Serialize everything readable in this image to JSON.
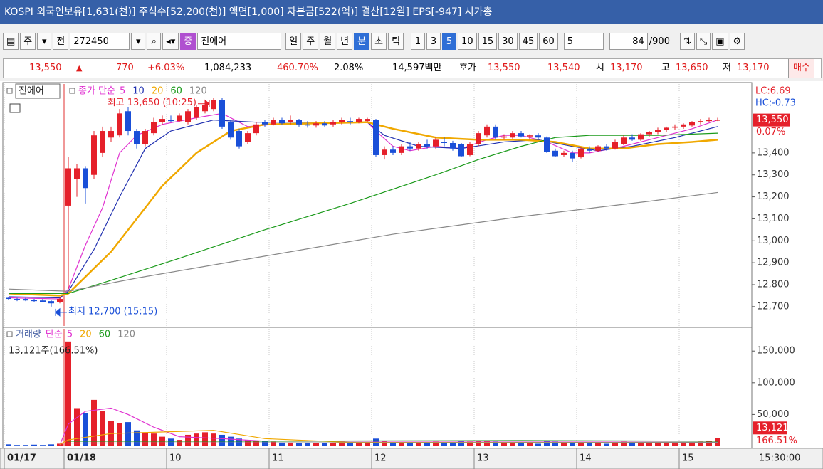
{
  "header": {
    "title": "KOSPI 외국인보유[1,631(천)] 주식수[52,200(천)] 액면[1,000] 자본금[522(억)] 결산[12월] EPS[-947] 시가총"
  },
  "toolbar": {
    "market": "주",
    "prefix": "전",
    "code": "272450",
    "badge": "증",
    "name": "진에어",
    "periods": [
      "일",
      "주",
      "월",
      "년",
      "분",
      "초",
      "틱"
    ],
    "selected_period": "분",
    "intervals": [
      1,
      3,
      5,
      10,
      15,
      30,
      45,
      60
    ],
    "selected_interval": 5,
    "count_select": 5,
    "count": 84,
    "max": "/900"
  },
  "quote": {
    "price": "13,550",
    "change": "770",
    "change_pct": "+6.03%",
    "volume": "1,084,233",
    "volume_ratio": "460.70%",
    "turnover": "2.08%",
    "amount": "14,597백만",
    "bid_label": "호가",
    "ask": "13,550",
    "bid": "13,540",
    "open_label": "시",
    "open": "13,170",
    "high_label": "고",
    "high": "13,650",
    "low_label": "저",
    "low": "13,170",
    "buy": "매수"
  },
  "chart_data": [
    {
      "type": "candlestick",
      "name": "진에어",
      "legend_title": "종가 단순",
      "up_color": "#e5202a",
      "down_color": "#1a4fd8",
      "candles": [
        [
          12740,
          12745,
          12730,
          12735
        ],
        [
          12735,
          12740,
          12725,
          12730
        ],
        [
          12735,
          12740,
          12725,
          12728
        ],
        [
          12730,
          12735,
          12720,
          12725
        ],
        [
          12728,
          12735,
          12720,
          12722
        ],
        [
          12725,
          12730,
          12700,
          12715
        ],
        [
          12720,
          12740,
          12715,
          12735
        ],
        [
          13160,
          13380,
          12780,
          13330
        ],
        [
          13280,
          13350,
          13200,
          13330
        ],
        [
          13330,
          13340,
          13170,
          13240
        ],
        [
          13300,
          13500,
          13280,
          13480
        ],
        [
          13400,
          13520,
          13380,
          13500
        ],
        [
          13470,
          13520,
          13450,
          13500
        ],
        [
          13480,
          13600,
          13470,
          13580
        ],
        [
          13590,
          13610,
          13480,
          13500
        ],
        [
          13500,
          13510,
          13420,
          13440
        ],
        [
          13440,
          13510,
          13430,
          13500
        ],
        [
          13490,
          13560,
          13480,
          13540
        ],
        [
          13540,
          13570,
          13530,
          13555
        ],
        [
          13550,
          13570,
          13540,
          13545
        ],
        [
          13545,
          13580,
          13540,
          13570
        ],
        [
          13540,
          13600,
          13530,
          13590
        ],
        [
          13560,
          13620,
          13550,
          13610
        ],
        [
          13590,
          13640,
          13580,
          13620
        ],
        [
          13600,
          13650,
          13590,
          13640
        ],
        [
          13640,
          13650,
          13510,
          13520
        ],
        [
          13540,
          13550,
          13460,
          13470
        ],
        [
          13500,
          13510,
          13420,
          13430
        ],
        [
          13450,
          13500,
          13440,
          13490
        ],
        [
          13490,
          13540,
          13480,
          13530
        ],
        [
          13540,
          13550,
          13520,
          13530
        ],
        [
          13530,
          13560,
          13525,
          13550
        ],
        [
          13550,
          13560,
          13530,
          13535
        ],
        [
          13540,
          13570,
          13530,
          13550
        ],
        [
          13550,
          13555,
          13520,
          13530
        ],
        [
          13530,
          13545,
          13515,
          13525
        ],
        [
          13525,
          13545,
          13515,
          13535
        ],
        [
          13535,
          13545,
          13520,
          13525
        ],
        [
          13530,
          13550,
          13520,
          13540
        ],
        [
          13540,
          13560,
          13530,
          13550
        ],
        [
          13545,
          13560,
          13530,
          13540
        ],
        [
          13540,
          13560,
          13535,
          13555
        ],
        [
          13545,
          13560,
          13540,
          13555
        ],
        [
          13550,
          13555,
          13380,
          13390
        ],
        [
          13390,
          13430,
          13370,
          13415
        ],
        [
          13415,
          13430,
          13390,
          13400
        ],
        [
          13400,
          13440,
          13390,
          13430
        ],
        [
          13430,
          13450,
          13410,
          13420
        ],
        [
          13420,
          13450,
          13410,
          13440
        ],
        [
          13440,
          13460,
          13420,
          13430
        ],
        [
          13430,
          13470,
          13420,
          13460
        ],
        [
          13450,
          13470,
          13430,
          13445
        ],
        [
          13445,
          13455,
          13410,
          13420
        ],
        [
          13440,
          13445,
          13380,
          13385
        ],
        [
          13390,
          13450,
          13385,
          13440
        ],
        [
          13440,
          13500,
          13430,
          13490
        ],
        [
          13480,
          13530,
          13470,
          13520
        ],
        [
          13520,
          13530,
          13460,
          13470
        ],
        [
          13470,
          13485,
          13460,
          13475
        ],
        [
          13470,
          13500,
          13465,
          13490
        ],
        [
          13490,
          13500,
          13470,
          13475
        ],
        [
          13475,
          13485,
          13460,
          13480
        ],
        [
          13480,
          13490,
          13460,
          13470
        ],
        [
          13470,
          13475,
          13400,
          13405
        ],
        [
          13410,
          13420,
          13380,
          13385
        ],
        [
          13390,
          13410,
          13380,
          13400
        ],
        [
          13400,
          13410,
          13360,
          13375
        ],
        [
          13380,
          13425,
          13375,
          13420
        ],
        [
          13420,
          13430,
          13400,
          13410
        ],
        [
          13410,
          13435,
          13405,
          13430
        ],
        [
          13430,
          13440,
          13410,
          13420
        ],
        [
          13420,
          13460,
          13415,
          13450
        ],
        [
          13440,
          13480,
          13435,
          13470
        ],
        [
          13470,
          13485,
          13455,
          13460
        ],
        [
          13460,
          13490,
          13455,
          13485
        ],
        [
          13485,
          13500,
          13475,
          13495
        ],
        [
          13495,
          13515,
          13485,
          13505
        ],
        [
          13505,
          13520,
          13495,
          13515
        ],
        [
          13515,
          13530,
          13505,
          13520
        ],
        [
          13520,
          13535,
          13510,
          13530
        ],
        [
          13525,
          13545,
          13520,
          13540
        ],
        [
          13540,
          13555,
          13530,
          13545
        ],
        [
          13545,
          13560,
          13540,
          13550
        ],
        [
          13550,
          13560,
          13545,
          13550
        ]
      ],
      "series": [
        {
          "name": "5",
          "color": "#e030d0",
          "x": [
            0,
            6,
            7,
            9,
            11,
            13,
            15,
            18,
            22,
            25,
            28,
            31,
            42,
            43,
            45,
            47,
            50,
            53,
            56,
            58,
            60,
            63,
            66,
            68,
            72,
            76,
            80,
            83
          ],
          "values": [
            12740,
            12735,
            12780,
            12980,
            13150,
            13400,
            13480,
            13530,
            13560,
            13580,
            13520,
            13530,
            13540,
            13500,
            13430,
            13410,
            13430,
            13420,
            13460,
            13480,
            13480,
            13450,
            13400,
            13400,
            13430,
            13470,
            13510,
            13550
          ]
        },
        {
          "name": "10",
          "color": "#2030b0",
          "x": [
            0,
            6,
            7,
            10,
            13,
            16,
            19,
            24,
            29,
            42,
            44,
            48,
            53,
            58,
            62,
            66,
            69,
            73,
            78,
            83
          ],
          "values": [
            12745,
            12740,
            12770,
            12960,
            13200,
            13420,
            13500,
            13550,
            13540,
            13540,
            13480,
            13430,
            13420,
            13450,
            13460,
            13430,
            13410,
            13430,
            13470,
            13520
          ]
        },
        {
          "name": "20",
          "color": "#f0a800",
          "x": [
            0,
            6,
            7,
            12,
            18,
            22,
            26,
            30,
            42,
            45,
            50,
            55,
            60,
            64,
            68,
            72,
            76,
            80,
            83
          ],
          "values": [
            12760,
            12750,
            12760,
            12950,
            13250,
            13400,
            13500,
            13530,
            13540,
            13510,
            13470,
            13460,
            13460,
            13450,
            13420,
            13420,
            13440,
            13450,
            13460
          ]
        },
        {
          "name": "60",
          "color": "#1a9a1a",
          "x": [
            0,
            7,
            12,
            20,
            30,
            40,
            50,
            55,
            60,
            64,
            68,
            76,
            83
          ],
          "values": [
            12760,
            12760,
            12820,
            12920,
            13050,
            13170,
            13300,
            13370,
            13430,
            13470,
            13480,
            13480,
            13490
          ]
        },
        {
          "name": "120",
          "color": "#888888",
          "x": [
            0,
            7,
            15,
            30,
            45,
            60,
            75,
            83
          ],
          "values": [
            12780,
            12770,
            12830,
            12930,
            13030,
            13110,
            13180,
            13220
          ]
        }
      ],
      "xlim": [
        0,
        87.5
      ],
      "xticks": [
        {
          "value": 0,
          "label": "01/17"
        },
        {
          "value": 7,
          "label": "01/18"
        },
        {
          "value": 19,
          "label": "10"
        },
        {
          "value": 31,
          "label": "11"
        },
        {
          "value": 43,
          "label": "12"
        },
        {
          "value": 55,
          "label": "13"
        },
        {
          "value": 67,
          "label": "14"
        },
        {
          "value": 79,
          "label": "15"
        }
      ],
      "time_label": "15:30:00",
      "ylim": [
        12612,
        13714
      ],
      "yticks": [
        {
          "value": 12700,
          "label": "12,700"
        },
        {
          "value": 12800,
          "label": "12,800"
        },
        {
          "value": 12900,
          "label": "12,900"
        },
        {
          "value": 13000,
          "label": "13,000"
        },
        {
          "value": 13100,
          "label": "13,100"
        },
        {
          "value": 13200,
          "label": "13,200"
        },
        {
          "value": 13300,
          "label": "13,300"
        },
        {
          "value": 13400,
          "label": "13,400"
        }
      ],
      "grid": true,
      "annotations": [
        {
          "text": "최고 13,650 (10:25)",
          "x": 24,
          "value": 13650
        },
        {
          "text": "최저 12,700 (15:15)",
          "x": 5,
          "value": 12700
        }
      ],
      "last": {
        "value": 13550,
        "label": "13,550"
      },
      "last_change": "0.07%",
      "lc": "LC:6.69",
      "hc": "HC:-0.73"
    },
    {
      "type": "bar",
      "name": "거래량",
      "legend_title": "단순",
      "info": "13,121주(166.51%)",
      "values": [
        3000,
        2000,
        2000,
        2500,
        2000,
        3000,
        4000,
        165000,
        60000,
        52000,
        73000,
        55000,
        40000,
        36000,
        38000,
        25000,
        22000,
        20000,
        15000,
        12000,
        10000,
        18000,
        20000,
        22000,
        20000,
        18000,
        15000,
        12000,
        10000,
        9000,
        8000,
        7000,
        6000,
        6000,
        5000,
        6000,
        5000,
        5000,
        6000,
        7000,
        6000,
        5000,
        6000,
        12000,
        8000,
        6000,
        5000,
        6000,
        5000,
        6000,
        7000,
        6000,
        5000,
        9000,
        7000,
        8000,
        9000,
        7000,
        5000,
        6000,
        5000,
        5000,
        4000,
        8000,
        7000,
        5000,
        6000,
        6000,
        5000,
        5000,
        4000,
        6000,
        7000,
        5000,
        5000,
        6000,
        6000,
        5000,
        6000,
        5000,
        6000,
        7000,
        8000,
        13121
      ],
      "series": [
        {
          "name": "5",
          "color": "#e030d0",
          "x": [
            6,
            7,
            9,
            12,
            14,
            17,
            20,
            25,
            30,
            83
          ],
          "values": [
            2000,
            35000,
            55000,
            60000,
            50000,
            30000,
            15000,
            12000,
            8000,
            8000
          ]
        },
        {
          "name": "20",
          "color": "#f0a800",
          "x": [
            6,
            7,
            12,
            24,
            30,
            40,
            83
          ],
          "values": [
            3000,
            10000,
            20000,
            25000,
            12000,
            6000,
            6000
          ]
        },
        {
          "name": "60",
          "color": "#1a9a1a",
          "x": [
            7,
            30,
            60,
            83
          ],
          "values": [
            8000,
            8000,
            9000,
            8000
          ]
        },
        {
          "name": "120",
          "color": "#888888",
          "x": [
            7,
            83
          ],
          "values": [
            5000,
            6000
          ]
        }
      ],
      "ylim": [
        0,
        185000
      ],
      "yticks": [
        {
          "value": 50000,
          "label": "50,000"
        },
        {
          "value": 100000,
          "label": "100,000"
        },
        {
          "value": 150000,
          "label": "150,000"
        }
      ],
      "last": {
        "value": 13121,
        "label": "13,121"
      },
      "last_change": "166.51%"
    }
  ]
}
